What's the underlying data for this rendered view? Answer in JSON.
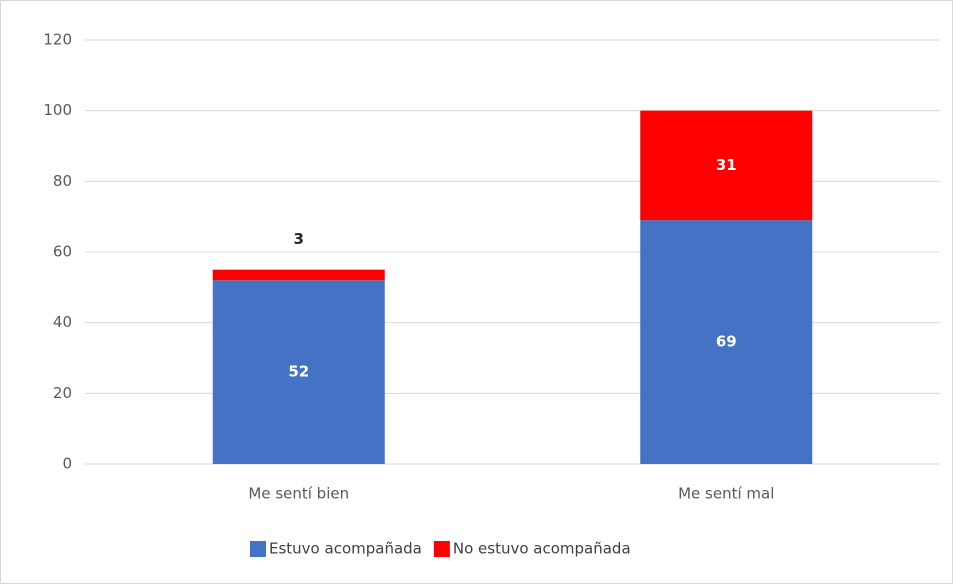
{
  "chart_data": {
    "type": "stacked_bar",
    "categories": [
      "Me sentí bien",
      "Me sentí mal"
    ],
    "series": [
      {
        "name": "Estuvo acompañada",
        "color": "#4472c4",
        "values": [
          52,
          69
        ]
      },
      {
        "name": "No estuvo acompañada",
        "color": "#ff0000",
        "values": [
          3,
          31
        ]
      }
    ],
    "ylim": [
      0,
      120
    ],
    "yticks": [
      0,
      20,
      40,
      60,
      80,
      100,
      120
    ],
    "grid": true,
    "legend": "bottom"
  }
}
